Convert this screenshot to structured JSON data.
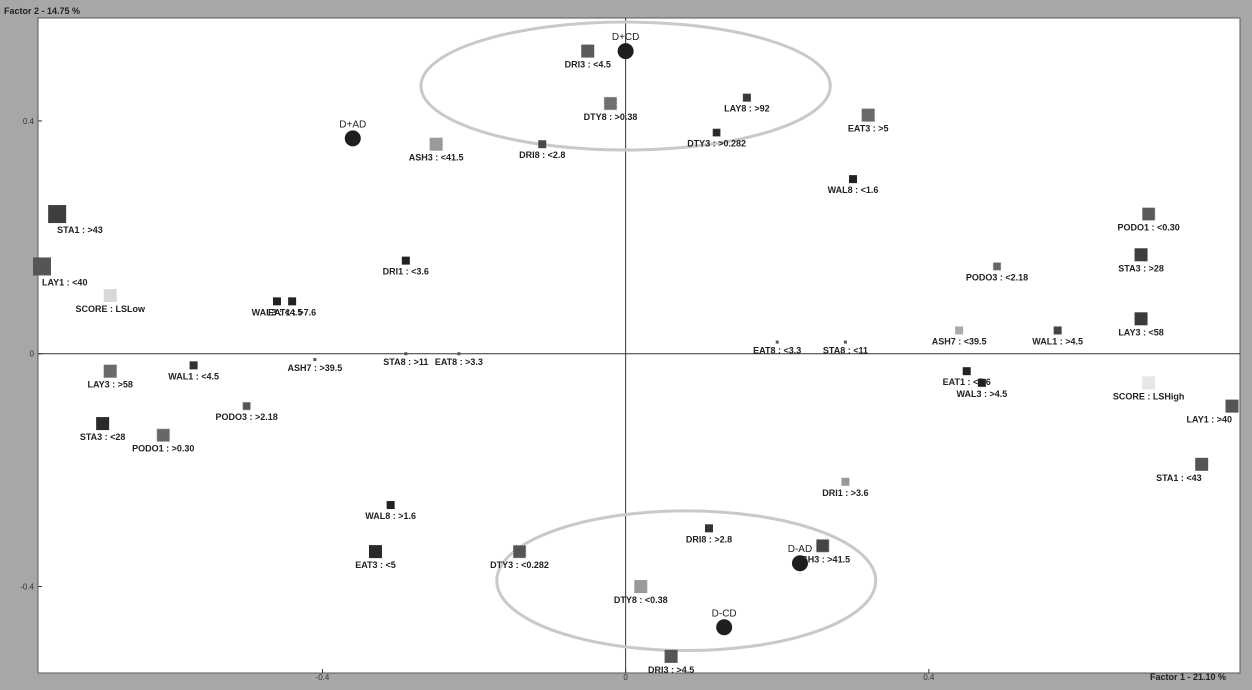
{
  "chart_data": {
    "type": "scatter",
    "title": "",
    "xlabel": "Factor 1 - 21.10 %",
    "ylabel": "Factor 2 - 14.75 %",
    "xlim": [
      -0.77,
      0.8
    ],
    "ylim": [
      -0.54,
      0.57
    ],
    "x_ticks": [
      {
        "value": -0.4,
        "label": "-0.4"
      },
      {
        "value": 0,
        "label": "0"
      },
      {
        "value": 0.4,
        "label": "0.4"
      }
    ],
    "y_ticks": [
      {
        "value": 0.4,
        "label": "0.4"
      },
      {
        "value": 0,
        "label": "0"
      },
      {
        "value": -0.4,
        "label": "-0.4"
      }
    ],
    "grid": false,
    "groups": [
      {
        "name": "D+CD",
        "x": 0.0,
        "y": 0.52
      },
      {
        "name": "D+AD",
        "x": -0.36,
        "y": 0.37
      },
      {
        "name": "D-AD",
        "x": 0.23,
        "y": -0.36
      },
      {
        "name": "D-CD",
        "x": 0.13,
        "y": -0.47
      }
    ],
    "points": [
      {
        "label": "STA1 : >43",
        "x": -0.75,
        "y": 0.24,
        "size": 3,
        "color": "#3e3e3e"
      },
      {
        "label": "LAY1 : <40",
        "x": -0.77,
        "y": 0.15,
        "size": 3,
        "color": "#555555"
      },
      {
        "label": "SCORE : LSLow",
        "x": -0.68,
        "y": 0.1,
        "size": 2,
        "color": "#d8d8d8"
      },
      {
        "label": "WAL3 : <4.5",
        "x": -0.46,
        "y": 0.09,
        "size": 1,
        "color": "#222222"
      },
      {
        "label": "EAT1 : >7.6",
        "x": -0.44,
        "y": 0.09,
        "size": 1,
        "color": "#222222"
      },
      {
        "label": "DRI1 : <3.6",
        "x": -0.29,
        "y": 0.16,
        "size": 1,
        "color": "#222222"
      },
      {
        "label": "ASH3 : <41.5",
        "x": -0.25,
        "y": 0.36,
        "size": 2,
        "color": "#9a9a9a"
      },
      {
        "label": "DRI3 : <4.5",
        "x": -0.05,
        "y": 0.52,
        "size": 2,
        "color": "#5a5a5a"
      },
      {
        "label": "DTY8 : >0.38",
        "x": -0.02,
        "y": 0.43,
        "size": 2,
        "color": "#6f6f6f",
        "pattern": true
      },
      {
        "label": "DRI8 : <2.8",
        "x": -0.11,
        "y": 0.36,
        "size": 1,
        "color": "#4a4a4a"
      },
      {
        "label": "LAY8 : >92",
        "x": 0.16,
        "y": 0.44,
        "size": 1,
        "color": "#3a3a3a"
      },
      {
        "label": "DTY3 : >0.282",
        "x": 0.12,
        "y": 0.38,
        "size": 1,
        "color": "#2a2a2a",
        "pattern": true
      },
      {
        "label": "EAT3 : >5",
        "x": 0.32,
        "y": 0.41,
        "size": 2,
        "color": "#6a6a6a"
      },
      {
        "label": "WAL8 : <1.6",
        "x": 0.3,
        "y": 0.3,
        "size": 1,
        "color": "#222222"
      },
      {
        "label": "PODO1 : <0.30",
        "x": 0.69,
        "y": 0.24,
        "size": 2,
        "color": "#5a5a5a",
        "pattern": true
      },
      {
        "label": "STA3 : >28",
        "x": 0.68,
        "y": 0.17,
        "size": 2,
        "color": "#3e3e3e"
      },
      {
        "label": "PODO3 : <2.18",
        "x": 0.49,
        "y": 0.15,
        "size": 1,
        "color": "#666666",
        "pattern": true
      },
      {
        "label": "LAY3 : <58",
        "x": 0.68,
        "y": 0.06,
        "size": 2,
        "color": "#3a3a3a"
      },
      {
        "label": "WAL1 : >4.5",
        "x": 0.57,
        "y": 0.04,
        "size": 1,
        "color": "#444444"
      },
      {
        "label": "ASH7 : <39.5",
        "x": 0.44,
        "y": 0.04,
        "size": 1,
        "color": "#aaaaaa"
      },
      {
        "label": "STA8 : <11",
        "x": 0.29,
        "y": 0.02,
        "size": 0,
        "color": "#555555"
      },
      {
        "label": "EAT8 : <3.3",
        "x": 0.2,
        "y": 0.02,
        "size": 0,
        "color": "#555555"
      },
      {
        "label": "EAT8 : >3.3",
        "x": -0.22,
        "y": 0.0,
        "size": 0,
        "color": "#555555"
      },
      {
        "label": "STA8 : >11",
        "x": -0.29,
        "y": 0.0,
        "size": 0,
        "color": "#555555"
      },
      {
        "label": "ASH7 : >39.5",
        "x": -0.41,
        "y": -0.01,
        "size": 0,
        "color": "#555555"
      },
      {
        "label": "WAL1 : <4.5",
        "x": -0.57,
        "y": -0.02,
        "size": 1,
        "color": "#333333"
      },
      {
        "label": "LAY3 : >58",
        "x": -0.68,
        "y": -0.03,
        "size": 2,
        "color": "#6a6a6a"
      },
      {
        "label": "PODO3 : >2.18",
        "x": -0.5,
        "y": -0.09,
        "size": 1,
        "color": "#555555",
        "pattern": true
      },
      {
        "label": "STA3 : <28",
        "x": -0.69,
        "y": -0.12,
        "size": 2,
        "color": "#2a2a2a"
      },
      {
        "label": "PODO1 : >0.30",
        "x": -0.61,
        "y": -0.14,
        "size": 2,
        "color": "#666666",
        "pattern": true
      },
      {
        "label": "EAT1 : <7.6",
        "x": 0.45,
        "y": -0.03,
        "size": 1,
        "color": "#222222"
      },
      {
        "label": "WAL3 : >4.5",
        "x": 0.47,
        "y": -0.05,
        "size": 1,
        "color": "#222222"
      },
      {
        "label": "SCORE : LSHigh",
        "x": 0.69,
        "y": -0.05,
        "size": 2,
        "color": "#e6e6e6"
      },
      {
        "label": "LAY1 : >40",
        "x": 0.8,
        "y": -0.09,
        "size": 2,
        "color": "#555555"
      },
      {
        "label": "STA1 : <43",
        "x": 0.76,
        "y": -0.19,
        "size": 2,
        "color": "#555555"
      },
      {
        "label": "WAL8 : >1.6",
        "x": -0.31,
        "y": -0.26,
        "size": 1,
        "color": "#222222"
      },
      {
        "label": "EAT3 : <5",
        "x": -0.33,
        "y": -0.34,
        "size": 2,
        "color": "#2a2a2a"
      },
      {
        "label": "DTY3 : <0.282",
        "x": -0.14,
        "y": -0.34,
        "size": 2,
        "color": "#555555",
        "pattern": true
      },
      {
        "label": "DRI8 : >2.8",
        "x": 0.11,
        "y": -0.3,
        "size": 1,
        "color": "#333333"
      },
      {
        "label": "DRI1 : >3.6",
        "x": 0.29,
        "y": -0.22,
        "size": 1,
        "color": "#999999"
      },
      {
        "label": "ASH3 : >41.5",
        "x": 0.26,
        "y": -0.33,
        "size": 2,
        "color": "#444444",
        "pattern": true
      },
      {
        "label": "DTY8 : <0.38",
        "x": 0.02,
        "y": -0.4,
        "size": 2,
        "color": "#9a9a9a"
      },
      {
        "label": "DRI3 : >4.5",
        "x": 0.06,
        "y": -0.52,
        "size": 2,
        "color": "#555555"
      }
    ],
    "highlight_ellipses": [
      {
        "cx": 0.0,
        "cy": 0.46,
        "rx": 0.27,
        "ry": 0.11
      },
      {
        "cx": 0.08,
        "cy": -0.39,
        "rx": 0.25,
        "ry": 0.12
      }
    ]
  }
}
